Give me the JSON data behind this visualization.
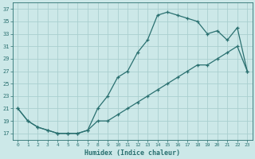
{
  "xlabel": "Humidex (Indice chaleur)",
  "line1_x": [
    0,
    1,
    2,
    3,
    4,
    5,
    6,
    7,
    8,
    9,
    10,
    11,
    12,
    13,
    14,
    15,
    16,
    17,
    18,
    19,
    20,
    21,
    22,
    23
  ],
  "line1_y": [
    21,
    19,
    18,
    17.5,
    17,
    17,
    17,
    17.5,
    21,
    23,
    26,
    27,
    30,
    32,
    36,
    36.5,
    36,
    35.5,
    35,
    33,
    33.5,
    32,
    34,
    27
  ],
  "line2_x": [
    0,
    1,
    2,
    3,
    4,
    5,
    6,
    7,
    8,
    9,
    10,
    11,
    12,
    13,
    14,
    15,
    16,
    17,
    18,
    19,
    20,
    21,
    22,
    23
  ],
  "line2_y": [
    21,
    19,
    18,
    17.5,
    17,
    17,
    17,
    17.5,
    19,
    19,
    20,
    21,
    22,
    23,
    24,
    25,
    26,
    27,
    28,
    28,
    29,
    30,
    31,
    27
  ],
  "line_color": "#2a7070",
  "bg_color": "#cce8e8",
  "grid_color": "#aacfcf",
  "xlim": [
    -0.5,
    23.5
  ],
  "ylim": [
    16,
    38
  ],
  "ytick_vals": [
    17,
    19,
    21,
    23,
    25,
    27,
    29,
    31,
    33,
    35,
    37
  ],
  "xtick_vals": [
    0,
    1,
    2,
    3,
    4,
    5,
    6,
    7,
    8,
    9,
    10,
    11,
    12,
    13,
    14,
    15,
    16,
    17,
    18,
    19,
    20,
    21,
    22,
    23
  ]
}
